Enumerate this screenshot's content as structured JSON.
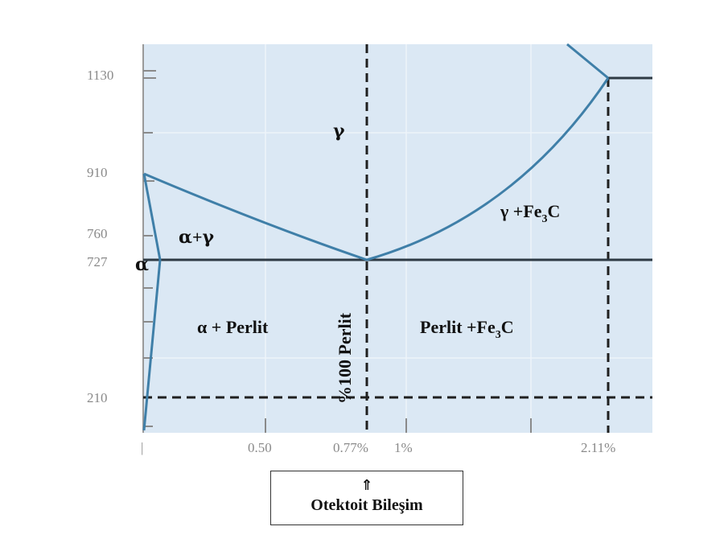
{
  "y_ticks": [
    "1130",
    "910",
    "760",
    "727",
    "210"
  ],
  "x_ticks": [
    "0.50",
    "0.77%",
    "1%",
    "2.11%"
  ],
  "x_origin_tick": "|",
  "regions": {
    "gamma": "γ",
    "alpha_gamma_a": "α",
    "alpha_gamma_plus": "+",
    "alpha_gamma_g": "γ",
    "alpha": "α",
    "gamma_fe3c_prefix": "γ +Fe",
    "gamma_fe3c_sub": "3",
    "gamma_fe3c_suffix": "C",
    "alpha_perlit": "α + Perlit",
    "perlit_fe3c_prefix": "Perlit +Fe",
    "perlit_fe3c_sub": "3",
    "perlit_fe3c_suffix": "C",
    "perlit_100": "%100 Perlit"
  },
  "callout": {
    "arrow": "⇑",
    "label": "Otektoit Bileşim"
  },
  "colors": {
    "plot_background": "#dbe8f4",
    "phase_line": "#3f7fa8",
    "horizontal_line": "#2e3a44",
    "dashed_line": "#1f1f1f",
    "tick_text": "#8a8a8a"
  }
}
